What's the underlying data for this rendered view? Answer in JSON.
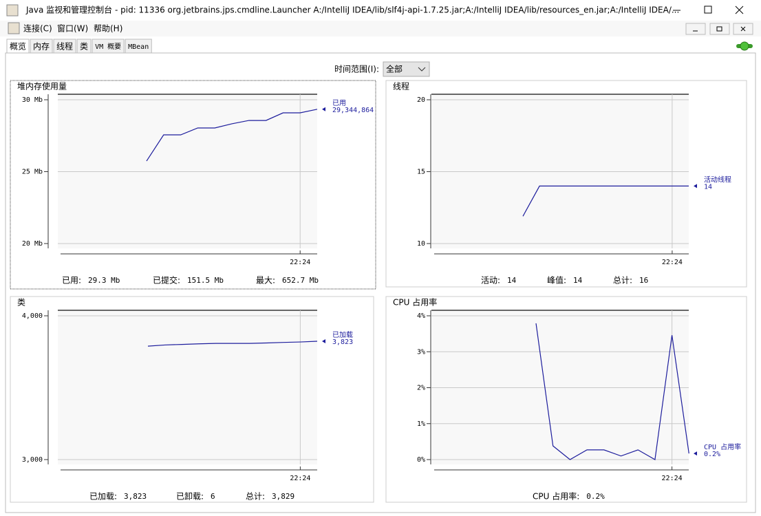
{
  "window": {
    "title": "Java 监视和管理控制台 - pid: 11336 org.jetbrains.jps.cmdline.Launcher A:/IntelliJ IDEA/lib/slf4j-api-1.7.25.jar;A:/IntelliJ IDEA/lib/resources_en.jar;A:/IntelliJ IDEA/..."
  },
  "menu": [
    "连接(C)",
    "窗口(W)",
    "帮助(H)"
  ],
  "tabs": [
    "概览",
    "内存",
    "线程",
    "类",
    "VM 概要",
    "MBean"
  ],
  "time_range": {
    "label": "时间范围(I):",
    "value": "全部"
  },
  "panels": [
    {
      "title": "堆内存使用量",
      "type": "line",
      "color": "#1c1c9c",
      "categories": [
        null,
        null,
        null,
        null,
        null,
        null,
        null,
        null,
        null,
        "22:24",
        null
      ],
      "series": [
        {
          "name": "已用",
          "values": [
            25.74,
            27.56,
            27.56,
            28.04,
            28.04,
            28.33,
            28.56,
            28.56,
            29.09,
            29.09,
            29.34
          ]
        }
      ],
      "legend_value": "29,344,864",
      "ylim": [
        20,
        30
      ],
      "yticks": [
        {
          "value": 30,
          "label": "30 Mb"
        },
        {
          "value": 25,
          "label": "25 Mb"
        },
        {
          "value": 20,
          "label": "20 Mb"
        }
      ],
      "footer": [
        {
          "label": "已用:",
          "value": "29.3  Mb"
        },
        {
          "label": "已提交:",
          "value": "151.5  Mb"
        },
        {
          "label": "最大:",
          "value": "652.7  Mb"
        }
      ]
    },
    {
      "title": "线程",
      "type": "line",
      "color": "#1c1c9c",
      "categories": [
        null,
        null,
        null,
        null,
        null,
        null,
        null,
        null,
        null,
        "22:24",
        null
      ],
      "series": [
        {
          "name": "活动线程",
          "values": [
            11.9,
            14,
            14,
            14,
            14,
            14,
            14,
            14,
            14,
            14,
            14
          ]
        }
      ],
      "legend_value": "14",
      "ylim": [
        10,
        20
      ],
      "yticks": [
        20,
        15,
        10
      ],
      "footer": [
        {
          "label": "活动:",
          "value": "14"
        },
        {
          "label": "峰值:",
          "value": "14"
        },
        {
          "label": "总计:",
          "value": "16"
        }
      ]
    },
    {
      "title": "类",
      "type": "line",
      "color": "#1c1c9c",
      "categories": [
        null,
        null,
        null,
        null,
        null,
        null,
        null,
        null,
        null,
        "22:24",
        null
      ],
      "series": [
        {
          "name": "已加载",
          "values": [
            3789,
            3797,
            3801,
            3805,
            3808,
            3808,
            3808,
            3811,
            3815,
            3818,
            3823
          ]
        }
      ],
      "legend_value": "3,823",
      "ylim": [
        3000,
        4000
      ],
      "yticks": [
        {
          "value": 4000,
          "label": "4,000"
        },
        {
          "value": 3000,
          "label": "3,000"
        }
      ],
      "footer": [
        {
          "label": "已加载:",
          "value": "3,823"
        },
        {
          "label": "已卸载:",
          "value": "6"
        },
        {
          "label": "总计:",
          "value": "3,829"
        }
      ]
    },
    {
      "title": "CPU 占用率",
      "type": "line",
      "color": "#1c1c9c",
      "categories": [
        null,
        null,
        null,
        null,
        null,
        null,
        null,
        null,
        "22:24",
        null
      ],
      "series": [
        {
          "name": "CPU 占用率",
          "values": [
            3.79,
            0.38,
            0,
            0.27,
            0.27,
            0.1,
            0.27,
            0,
            3.46,
            0.17
          ]
        }
      ],
      "legend_value": "0.2%",
      "ylim": [
        0,
        4
      ],
      "yticks": [
        {
          "value": 4,
          "label": "4%"
        },
        {
          "value": 3,
          "label": "3%"
        },
        {
          "value": 2,
          "label": "2%"
        },
        {
          "value": 1,
          "label": "1%"
        },
        {
          "value": 0,
          "label": "0%"
        }
      ],
      "footer": [
        {
          "label": "CPU 占用率:",
          "value": "0.2%"
        }
      ]
    }
  ]
}
